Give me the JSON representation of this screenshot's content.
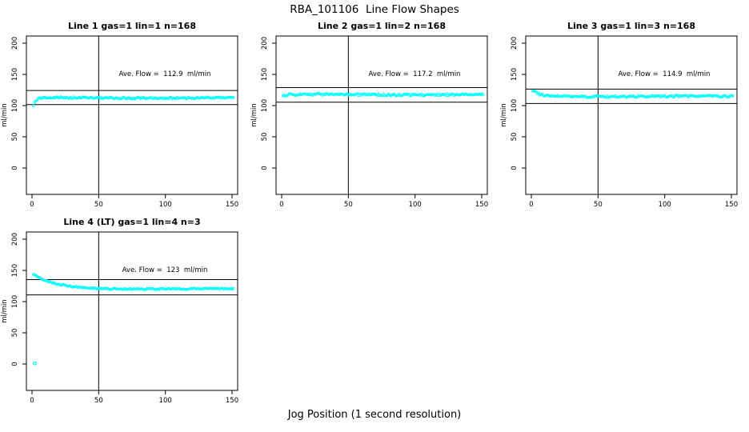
{
  "figure": {
    "title": "RBA_101106  Line Flow Shapes",
    "xlabel": "Jog Position (1 second resolution)",
    "background_color": "#ffffff",
    "point_color": "#00ffff",
    "axis_color": "#000000"
  },
  "chart_data": [
    {
      "type": "scatter",
      "title": "Line 1 gas=1 lin=1 n=168",
      "annotation": "Ave. Flow =  112.9  ml/min",
      "ave_flow": 112.9,
      "n": 168,
      "ylabel": "ml/min",
      "x_ticks": [
        0,
        50,
        100,
        150
      ],
      "y_ticks": [
        0,
        50,
        100,
        150,
        200
      ],
      "xlim": [
        -4,
        154
      ],
      "ylim": [
        -42,
        212
      ],
      "vline_x": 50,
      "hlines": [
        124.2,
        101.6
      ],
      "annotation_at": {
        "x": 100,
        "y": 150
      },
      "series": {
        "x_start": 1,
        "x_end": 151,
        "start_y": 100,
        "settle_y": 112.3,
        "tau": 2.2,
        "noise": 1.3,
        "seed": 7,
        "outliers": []
      }
    },
    {
      "type": "scatter",
      "title": "Line 2 gas=1 lin=2 n=168",
      "annotation": "Ave. Flow =  117.2  ml/min",
      "ave_flow": 117.2,
      "n": 168,
      "ylabel": "ml/min",
      "x_ticks": [
        0,
        50,
        100,
        150
      ],
      "y_ticks": [
        0,
        50,
        100,
        150,
        200
      ],
      "xlim": [
        -4,
        154
      ],
      "ylim": [
        -42,
        212
      ],
      "vline_x": 50,
      "hlines": [
        128.9,
        105.5
      ],
      "annotation_at": {
        "x": 100,
        "y": 150
      },
      "series": {
        "x_start": 1,
        "x_end": 151,
        "start_y": 115.5,
        "settle_y": 117.6,
        "tau": 3,
        "noise": 1.5,
        "seed": 13,
        "outliers": []
      }
    },
    {
      "type": "scatter",
      "title": "Line 3 gas=1 lin=3 n=168",
      "annotation": "Ave. Flow =  114.9  ml/min",
      "ave_flow": 114.9,
      "n": 168,
      "ylabel": "ml/min",
      "x_ticks": [
        0,
        50,
        100,
        150
      ],
      "y_ticks": [
        0,
        50,
        100,
        150,
        200
      ],
      "xlim": [
        -4,
        154
      ],
      "ylim": [
        -42,
        212
      ],
      "vline_x": 50,
      "hlines": [
        126.4,
        103.4
      ],
      "annotation_at": {
        "x": 100,
        "y": 150
      },
      "series": {
        "x_start": 1,
        "x_end": 151,
        "start_y": 124,
        "settle_y": 114.8,
        "tau": 5,
        "noise": 1.5,
        "seed": 21,
        "outliers": []
      }
    },
    {
      "type": "scatter",
      "title": "Line 4 (LT) gas=1 lin=4 n=3",
      "annotation": "Ave. Flow =  123  ml/min",
      "ave_flow": 123,
      "n": 3,
      "ylabel": "ml/min",
      "x_ticks": [
        0,
        50,
        100,
        150
      ],
      "y_ticks": [
        0,
        50,
        100,
        150,
        200
      ],
      "xlim": [
        -4,
        154
      ],
      "ylim": [
        -42,
        212
      ],
      "vline_x": 50,
      "hlines": [
        135.3,
        110.7
      ],
      "annotation_at": {
        "x": 100,
        "y": 150
      },
      "series": {
        "x_start": 1,
        "x_end": 151,
        "start_y": 144,
        "settle_y": 120.3,
        "tau": 16,
        "noise": 1.0,
        "seed": 33,
        "outliers": [
          [
            2,
            1
          ]
        ]
      }
    }
  ]
}
